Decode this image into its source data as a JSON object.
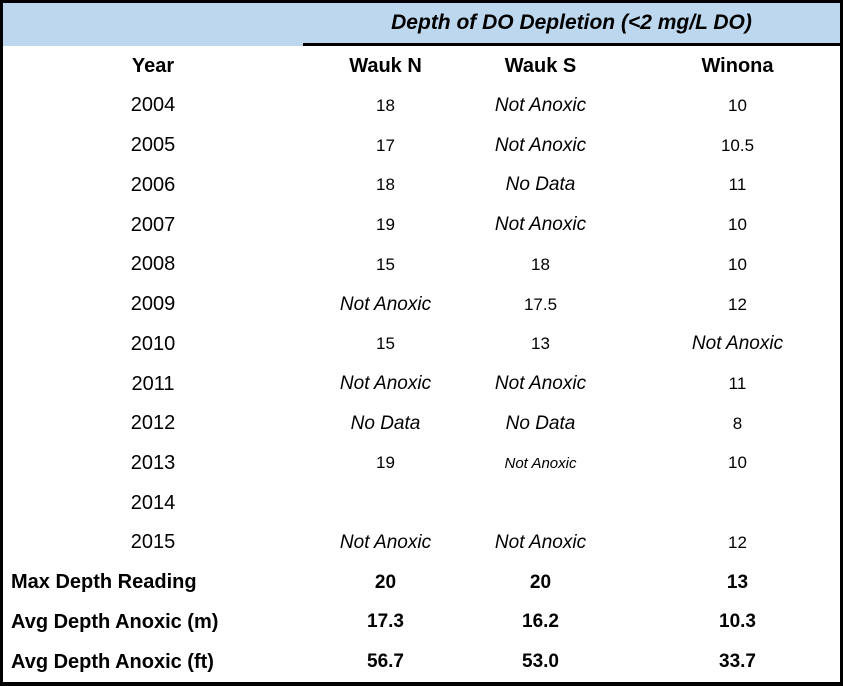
{
  "colors": {
    "band_background": "#BDD7EE",
    "border": "#000000",
    "text": "#000000"
  },
  "table": {
    "title": "Depth of DO Depletion (<2 mg/L DO)",
    "headers": [
      "Year",
      "Wauk N",
      "Wauk S",
      "Winona"
    ],
    "rows": [
      {
        "label": "2004",
        "type": "year",
        "cells": [
          {
            "t": "18",
            "s": "num"
          },
          {
            "t": "Not Anoxic",
            "s": "ital"
          },
          {
            "t": "10",
            "s": "num"
          }
        ]
      },
      {
        "label": "2005",
        "type": "year",
        "cells": [
          {
            "t": "17",
            "s": "num"
          },
          {
            "t": "Not Anoxic",
            "s": "ital"
          },
          {
            "t": "10.5",
            "s": "num"
          }
        ]
      },
      {
        "label": "2006",
        "type": "year",
        "cells": [
          {
            "t": "18",
            "s": "num"
          },
          {
            "t": "No Data",
            "s": "ital"
          },
          {
            "t": "11",
            "s": "num"
          }
        ]
      },
      {
        "label": "2007",
        "type": "year",
        "cells": [
          {
            "t": "19",
            "s": "num"
          },
          {
            "t": "Not Anoxic",
            "s": "ital"
          },
          {
            "t": "10",
            "s": "num"
          }
        ]
      },
      {
        "label": "2008",
        "type": "year",
        "cells": [
          {
            "t": "15",
            "s": "num"
          },
          {
            "t": "18",
            "s": "num"
          },
          {
            "t": "10",
            "s": "num"
          }
        ]
      },
      {
        "label": "2009",
        "type": "year",
        "cells": [
          {
            "t": "Not Anoxic",
            "s": "ital"
          },
          {
            "t": "17.5",
            "s": "num"
          },
          {
            "t": "12",
            "s": "num"
          }
        ]
      },
      {
        "label": "2010",
        "type": "year",
        "cells": [
          {
            "t": "15",
            "s": "num"
          },
          {
            "t": "13",
            "s": "num"
          },
          {
            "t": "Not Anoxic",
            "s": "ital"
          }
        ]
      },
      {
        "label": "2011",
        "type": "year",
        "cells": [
          {
            "t": "Not Anoxic",
            "s": "ital"
          },
          {
            "t": "Not Anoxic",
            "s": "ital"
          },
          {
            "t": "11",
            "s": "num"
          }
        ]
      },
      {
        "label": "2012",
        "type": "year",
        "cells": [
          {
            "t": "No Data",
            "s": "ital"
          },
          {
            "t": "No Data",
            "s": "ital"
          },
          {
            "t": "8",
            "s": "num"
          }
        ]
      },
      {
        "label": "2013",
        "type": "year",
        "cells": [
          {
            "t": "19",
            "s": "num"
          },
          {
            "t": "Not Anoxic",
            "s": "ital-sm"
          },
          {
            "t": "10",
            "s": "num"
          }
        ]
      },
      {
        "label": "2014",
        "type": "year",
        "cells": [
          {
            "t": "",
            "s": "num"
          },
          {
            "t": "",
            "s": "num"
          },
          {
            "t": "",
            "s": "num"
          }
        ]
      },
      {
        "label": "2015",
        "type": "year",
        "cells": [
          {
            "t": "Not Anoxic",
            "s": "ital"
          },
          {
            "t": "Not Anoxic",
            "s": "ital"
          },
          {
            "t": "12",
            "s": "num"
          }
        ]
      },
      {
        "label": "Max Depth Reading",
        "type": "summary",
        "cells": [
          {
            "t": "20",
            "s": "bold"
          },
          {
            "t": "20",
            "s": "bold"
          },
          {
            "t": "13",
            "s": "bold"
          }
        ]
      },
      {
        "label": "Avg Depth Anoxic (m)",
        "type": "summary",
        "cells": [
          {
            "t": "17.3",
            "s": "bold"
          },
          {
            "t": "16.2",
            "s": "bold"
          },
          {
            "t": "10.3",
            "s": "bold"
          }
        ]
      },
      {
        "label": "Avg Depth Anoxic (ft)",
        "type": "summary",
        "cells": [
          {
            "t": "56.7",
            "s": "bold"
          },
          {
            "t": "53.0",
            "s": "bold"
          },
          {
            "t": "33.7",
            "s": "bold"
          }
        ]
      }
    ]
  },
  "chart_data": {
    "type": "table",
    "title": "Depth of DO Depletion (<2 mg/L DO)",
    "columns": [
      "Year",
      "Wauk N",
      "Wauk S",
      "Winona"
    ],
    "rows": [
      [
        "2004",
        "18",
        "Not Anoxic",
        "10"
      ],
      [
        "2005",
        "17",
        "Not Anoxic",
        "10.5"
      ],
      [
        "2006",
        "18",
        "No Data",
        "11"
      ],
      [
        "2007",
        "19",
        "Not Anoxic",
        "10"
      ],
      [
        "2008",
        "15",
        "18",
        "10"
      ],
      [
        "2009",
        "Not Anoxic",
        "17.5",
        "12"
      ],
      [
        "2010",
        "15",
        "13",
        "Not Anoxic"
      ],
      [
        "2011",
        "Not Anoxic",
        "Not Anoxic",
        "11"
      ],
      [
        "2012",
        "No Data",
        "No Data",
        "8"
      ],
      [
        "2013",
        "19",
        "Not Anoxic",
        "10"
      ],
      [
        "2014",
        "",
        "",
        ""
      ],
      [
        "2015",
        "Not Anoxic",
        "Not Anoxic",
        "12"
      ],
      [
        "Max Depth Reading",
        "20",
        "20",
        "13"
      ],
      [
        "Avg Depth Anoxic (m)",
        "17.3",
        "16.2",
        "10.3"
      ],
      [
        "Avg Depth Anoxic (ft)",
        "56.7",
        "53.0",
        "33.7"
      ]
    ]
  }
}
